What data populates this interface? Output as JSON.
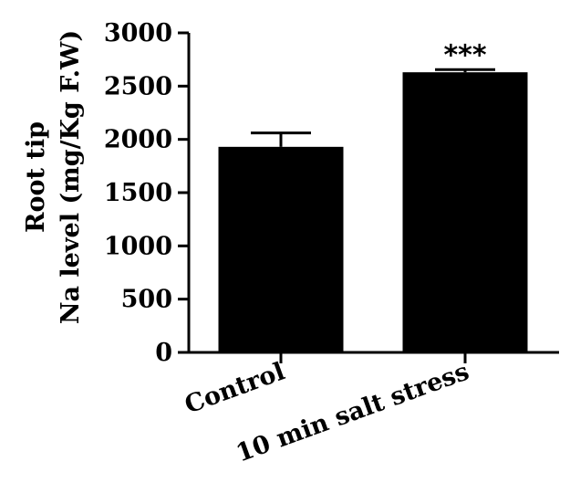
{
  "chart_data": {
    "type": "bar",
    "categories": [
      "Control",
      "10 min salt stress"
    ],
    "values": [
      1930,
      2630
    ],
    "errors": [
      130,
      25
    ],
    "annotations": [
      "",
      "***"
    ],
    "ylabel_lines": [
      "Root tip",
      "Na level (mg/Kg F.W)"
    ],
    "ylim": [
      0,
      3000
    ],
    "yticks": [
      "0",
      "500",
      "1000",
      "1500",
      "2000",
      "2500",
      "3000"
    ],
    "bar_color": "#000000",
    "grid": false,
    "legend": "none"
  }
}
